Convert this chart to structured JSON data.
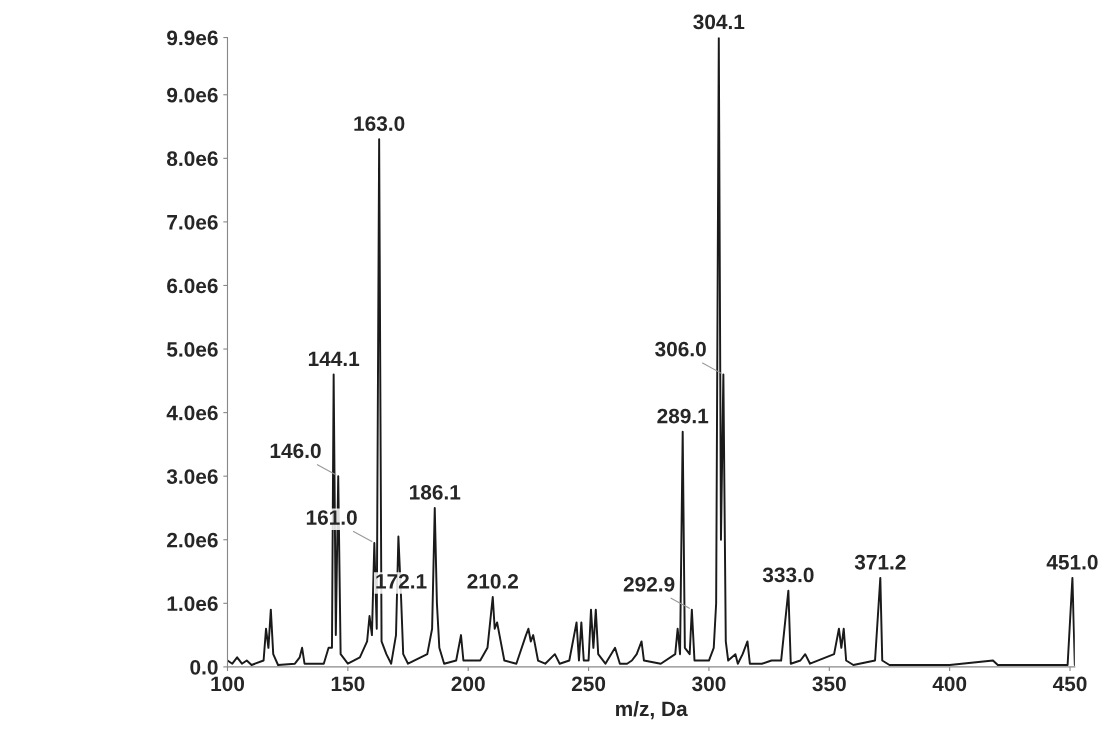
{
  "chart_data": {
    "type": "line",
    "xlabel": "m/z, Da",
    "series": [
      {
        "color": "#1a1a1a",
        "x": [
          100,
          102,
          104,
          106,
          108,
          110,
          115,
          116,
          117,
          118,
          119,
          121,
          128,
          130,
          131,
          132,
          140,
          142,
          143.4,
          144.1,
          145,
          146.0,
          147,
          150,
          155,
          158,
          159,
          160,
          161.0,
          162,
          163.0,
          164,
          166,
          168,
          170,
          171,
          172.1,
          173,
          175,
          183,
          185,
          186.1,
          187,
          188,
          190,
          195,
          197,
          198,
          205,
          208,
          210.2,
          211,
          212,
          213,
          215,
          220,
          224,
          225,
          226,
          227,
          229,
          232,
          236,
          238,
          242,
          245,
          246,
          247,
          248,
          250,
          251,
          252,
          253,
          254,
          257,
          261,
          263,
          266,
          268,
          270,
          272,
          273,
          280,
          286,
          287,
          288,
          289.1,
          290,
          292,
          292.9,
          294,
          300,
          302,
          303,
          304.1,
          305,
          306.0,
          307,
          308,
          311,
          312,
          314,
          316,
          317,
          322,
          326,
          330,
          333.0,
          334,
          338,
          340,
          342,
          352,
          354,
          355,
          356,
          357,
          360,
          369,
          371.2,
          372,
          375,
          400,
          418,
          420,
          449,
          451.0,
          452
        ],
        "values": [
          100000,
          50000,
          150000,
          50000,
          100000,
          30000,
          100000,
          600000,
          300000,
          900000,
          200000,
          30000,
          50000,
          150000,
          300000,
          50000,
          50000,
          300000,
          300000,
          4600000,
          500000,
          3000000,
          200000,
          50000,
          150000,
          400000,
          800000,
          500000,
          1950000,
          600000,
          8300000,
          400000,
          200000,
          50000,
          500000,
          2050000,
          1100000,
          200000,
          50000,
          200000,
          600000,
          2500000,
          1000000,
          300000,
          50000,
          100000,
          500000,
          100000,
          100000,
          300000,
          1100000,
          600000,
          700000,
          500000,
          100000,
          50000,
          500000,
          600000,
          400000,
          500000,
          100000,
          50000,
          200000,
          50000,
          100000,
          700000,
          100000,
          700000,
          100000,
          100000,
          900000,
          300000,
          900000,
          200000,
          50000,
          300000,
          50000,
          50000,
          100000,
          200000,
          400000,
          100000,
          50000,
          200000,
          600000,
          200000,
          3700000,
          300000,
          200000,
          900000,
          100000,
          100000,
          300000,
          1000000,
          9900000,
          2000000,
          4600000,
          400000,
          100000,
          200000,
          50000,
          200000,
          400000,
          50000,
          50000,
          100000,
          100000,
          1200000,
          50000,
          100000,
          200000,
          50000,
          200000,
          600000,
          300000,
          600000,
          100000,
          30000,
          100000,
          1400000,
          100000,
          30000,
          30000,
          100000,
          30000,
          30000,
          1400000,
          30000
        ]
      }
    ],
    "xlim": [
      100,
      452
    ],
    "xticks": [
      100,
      150,
      200,
      250,
      300,
      350,
      400,
      450
    ],
    "ylim": [
      0,
      9900000
    ],
    "yticks": [
      {
        "value": 0,
        "label": "0.0"
      },
      {
        "value": 1000000,
        "label": "1.0e6"
      },
      {
        "value": 2000000,
        "label": "2.0e6"
      },
      {
        "value": 3000000,
        "label": "3.0e6"
      },
      {
        "value": 4000000,
        "label": "4.0e6"
      },
      {
        "value": 5000000,
        "label": "5.0e6"
      },
      {
        "value": 6000000,
        "label": "6.0e6"
      },
      {
        "value": 7000000,
        "label": "7.0e6"
      },
      {
        "value": 8000000,
        "label": "8.0e6"
      },
      {
        "value": 9000000,
        "label": "9.0e6"
      },
      {
        "value": 9900000,
        "label": "9.9e6"
      }
    ],
    "grid": false,
    "legend": false,
    "annotations": [
      {
        "text": "144.1",
        "x": 144.1,
        "y": 4600000
      },
      {
        "text": "146.0",
        "x": 146.0,
        "y": 3000000
      },
      {
        "text": "161.0",
        "x": 161.0,
        "y": 1950000
      },
      {
        "text": "163.0",
        "x": 163.0,
        "y": 8300000
      },
      {
        "text": "172.1",
        "x": 172.1,
        "y": 1100000
      },
      {
        "text": "186.1",
        "x": 186.1,
        "y": 2500000
      },
      {
        "text": "210.2",
        "x": 210.2,
        "y": 1100000
      },
      {
        "text": "289.1",
        "x": 289.1,
        "y": 3700000
      },
      {
        "text": "292.9",
        "x": 292.9,
        "y": 900000
      },
      {
        "text": "304.1",
        "x": 304.1,
        "y": 9900000
      },
      {
        "text": "306.0",
        "x": 306.0,
        "y": 4600000
      },
      {
        "text": "333.0",
        "x": 333.0,
        "y": 1200000
      },
      {
        "text": "371.2",
        "x": 371.2,
        "y": 1400000
      },
      {
        "text": "451.0",
        "x": 451.0,
        "y": 1400000
      }
    ]
  }
}
